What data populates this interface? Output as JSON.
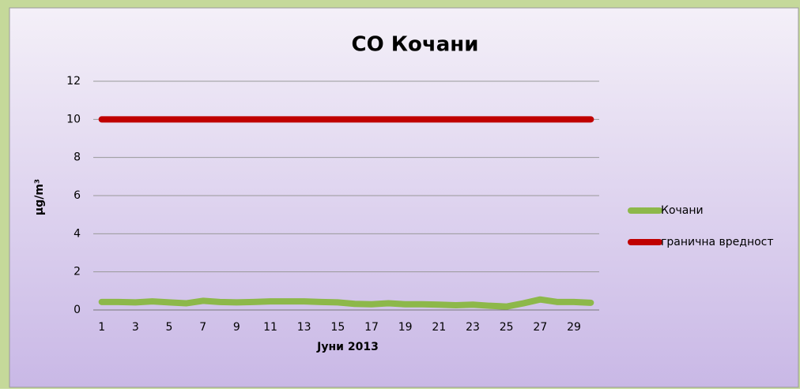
{
  "chart_data": {
    "type": "line",
    "title": "CO Кочани",
    "y_label": "µg/m³",
    "x_label": "Јуни 2013",
    "categories": [
      1,
      null,
      3,
      null,
      5,
      null,
      7,
      null,
      9,
      null,
      11,
      null,
      13,
      null,
      15,
      null,
      17,
      null,
      19,
      null,
      21,
      null,
      23,
      null,
      25,
      null,
      27,
      null,
      29,
      null
    ],
    "series": [
      {
        "name": "Кочани",
        "color": "#8db84a",
        "values": [
          0.42,
          0.42,
          0.4,
          0.45,
          0.4,
          0.35,
          0.48,
          0.42,
          0.4,
          0.42,
          0.45,
          0.45,
          0.45,
          0.42,
          0.4,
          0.32,
          0.3,
          0.35,
          0.3,
          0.3,
          0.28,
          0.25,
          0.28,
          0.22,
          0.18,
          0.35,
          0.55,
          0.42,
          0.42,
          0.38
        ]
      },
      {
        "name": "гранична вредност",
        "color": "#c00000",
        "values": [
          10,
          10,
          10,
          10,
          10,
          10,
          10,
          10,
          10,
          10,
          10,
          10,
          10,
          10,
          10,
          10,
          10,
          10,
          10,
          10,
          10,
          10,
          10,
          10,
          10,
          10,
          10,
          10,
          10,
          10
        ]
      }
    ],
    "ylim": [
      0,
      12
    ],
    "yticks": [
      0,
      2,
      4,
      6,
      8,
      10,
      12
    ],
    "grid": true,
    "legend": "right"
  }
}
